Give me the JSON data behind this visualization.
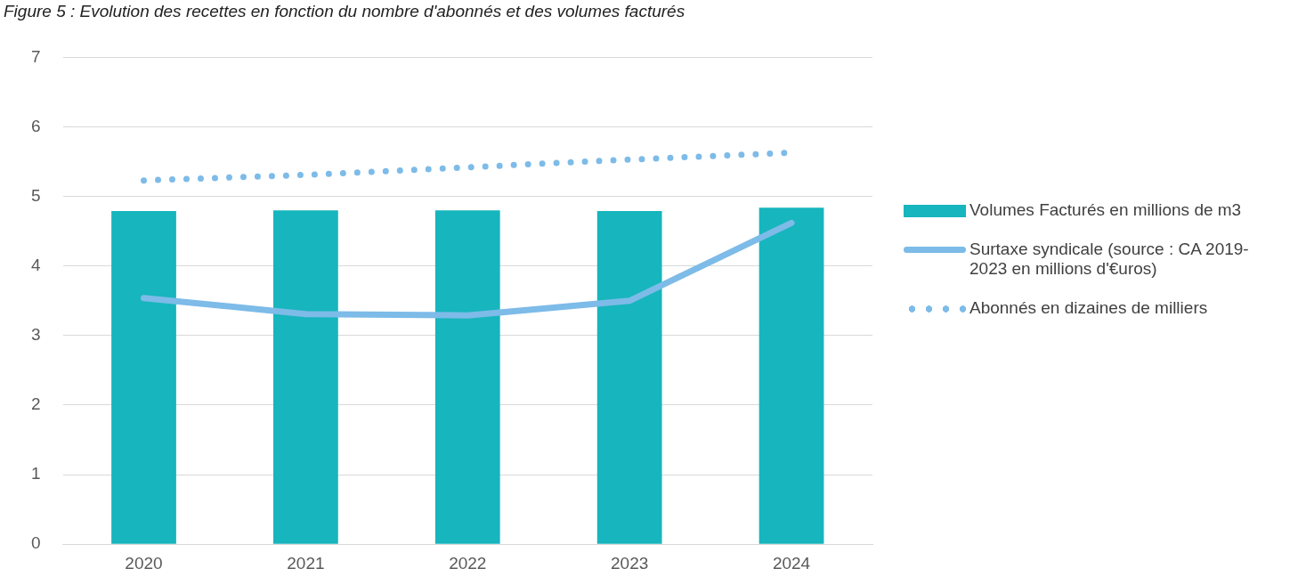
{
  "chart_data": {
    "type": "bar",
    "title": "Figure 5 : Evolution des recettes en fonction du nombre d'abonnés et des volumes facturés",
    "categories": [
      "2020",
      "2021",
      "2022",
      "2023",
      "2024"
    ],
    "series": [
      {
        "name": "Volumes Facturés en millions de m3",
        "color": "#17b5bd",
        "values": [
          4.79,
          4.8,
          4.8,
          4.79,
          4.84
        ]
      },
      {
        "name": "Surtaxe syndicale (source : CA 2019-2023 en millions d'€uros)",
        "type": "line",
        "line_style": "solid",
        "color": "#7dbbe8",
        "values": [
          3.54,
          3.31,
          3.29,
          3.5,
          4.62
        ]
      },
      {
        "name": "Abonnés en dizaines de milliers",
        "type": "line",
        "line_style": "dotted",
        "color": "#7dbbe8",
        "values": [
          5.23,
          5.31,
          5.42,
          5.53,
          5.63
        ]
      }
    ],
    "ylim": [
      0,
      7
    ],
    "yticks": [
      0,
      1,
      2,
      3,
      4,
      5,
      6,
      7
    ],
    "grid": "y",
    "legend": "right",
    "marker": "none"
  }
}
